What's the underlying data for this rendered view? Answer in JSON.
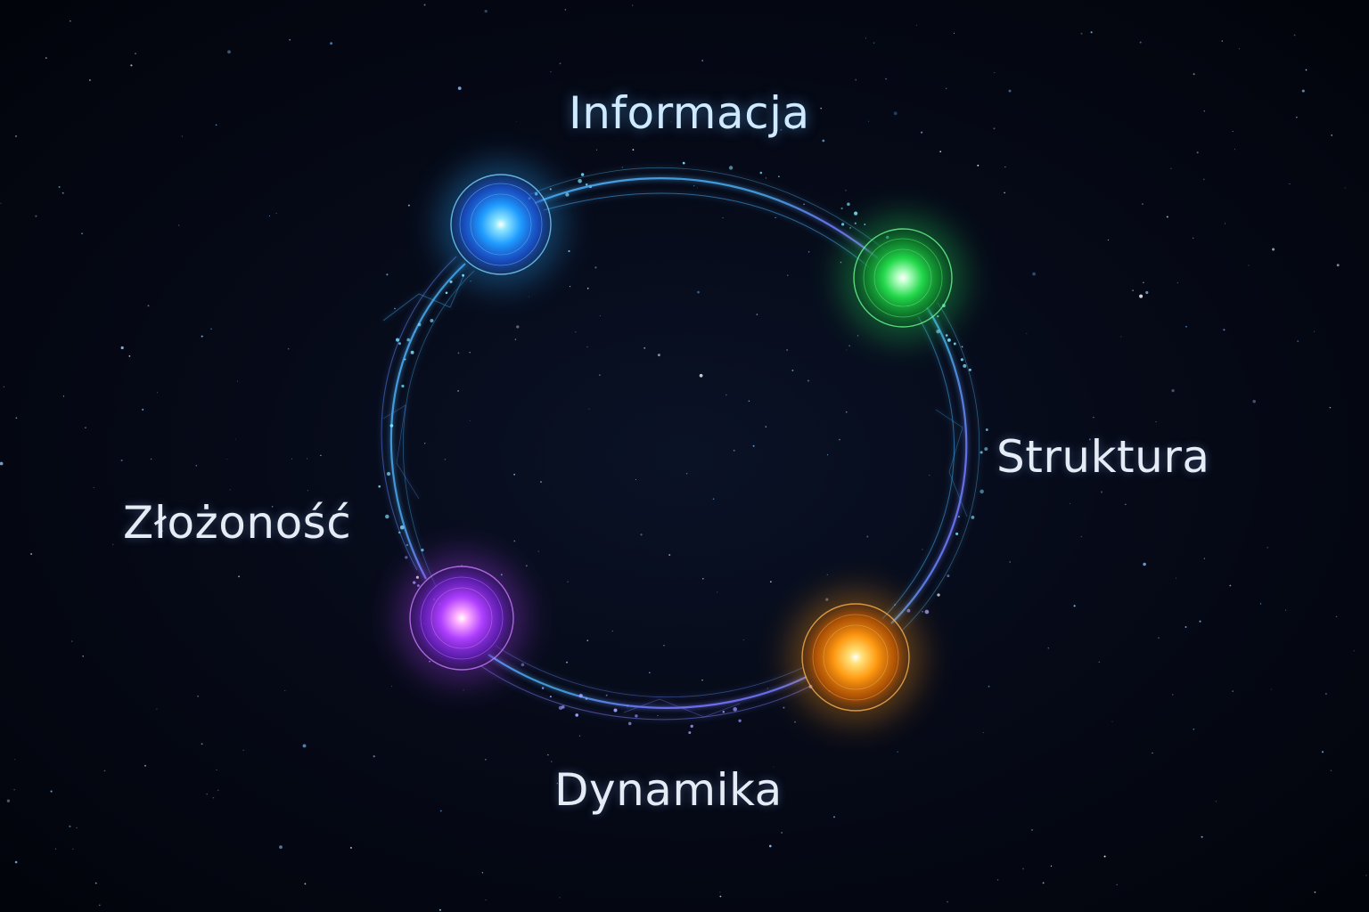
{
  "diagram": {
    "type": "cycle",
    "nodes": [
      {
        "id": "informacja",
        "label": "Informacja",
        "color": "#2aa8ff"
      },
      {
        "id": "struktura",
        "label": "Struktura",
        "color": "#22e05a"
      },
      {
        "id": "dynamika",
        "label": "Dynamika",
        "color": "#ff9a12"
      },
      {
        "id": "zlozonosc",
        "label": "Złożoność",
        "color": "#b040ff"
      }
    ],
    "edges": [
      {
        "from": "informacja",
        "to": "struktura"
      },
      {
        "from": "struktura",
        "to": "dynamika"
      },
      {
        "from": "dynamika",
        "to": "zlozonosc"
      },
      {
        "from": "zlozonosc",
        "to": "informacja"
      }
    ]
  },
  "colors": {
    "background": "#03050d",
    "ring": "#5ab8ff",
    "ring_violet": "#7a6cff",
    "label": "#e6ecf5"
  }
}
